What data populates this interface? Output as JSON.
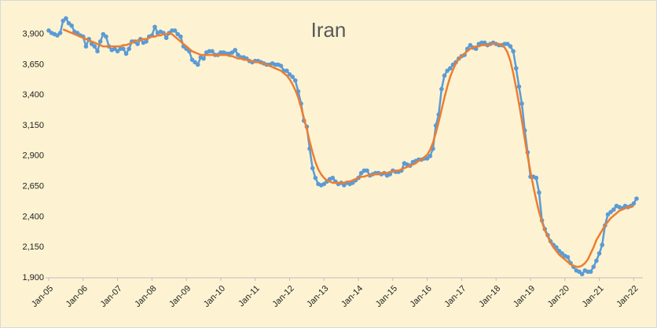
{
  "chart_data": {
    "type": "line",
    "title": "Iran",
    "categories": [
      "Jan-05",
      null,
      null,
      null,
      null,
      null,
      null,
      null,
      null,
      null,
      null,
      null,
      "Jan-06",
      null,
      null,
      null,
      null,
      null,
      null,
      null,
      null,
      null,
      null,
      null,
      "Jan-07",
      null,
      null,
      null,
      null,
      null,
      null,
      null,
      null,
      null,
      null,
      null,
      "Jan-08",
      null,
      null,
      null,
      null,
      null,
      null,
      null,
      null,
      null,
      null,
      null,
      "Jan-09",
      null,
      null,
      null,
      null,
      null,
      null,
      null,
      null,
      null,
      null,
      null,
      "Jan-10",
      null,
      null,
      null,
      null,
      null,
      null,
      null,
      null,
      null,
      null,
      null,
      "Jan-11",
      null,
      null,
      null,
      null,
      null,
      null,
      null,
      null,
      null,
      null,
      null,
      "Jan-12",
      null,
      null,
      null,
      null,
      null,
      null,
      null,
      null,
      null,
      null,
      null,
      "Jan-13",
      null,
      null,
      null,
      null,
      null,
      null,
      null,
      null,
      null,
      null,
      null,
      "Jan-14",
      null,
      null,
      null,
      null,
      null,
      null,
      null,
      null,
      null,
      null,
      null,
      "Jan-15",
      null,
      null,
      null,
      null,
      null,
      null,
      null,
      null,
      null,
      null,
      null,
      "Jan-16",
      null,
      null,
      null,
      null,
      null,
      null,
      null,
      null,
      null,
      null,
      null,
      "Jan-17",
      null,
      null,
      null,
      null,
      null,
      null,
      null,
      null,
      null,
      null,
      null,
      "Jan-18",
      null,
      null,
      null,
      null,
      null,
      null,
      null,
      null,
      null,
      null,
      null,
      "Jan-19",
      null,
      null,
      null,
      null,
      null,
      null,
      null,
      null,
      null,
      null,
      null,
      "Jan-20",
      null,
      null,
      null,
      null,
      null,
      null,
      null,
      null,
      null,
      null,
      null,
      "Jan-21",
      null,
      null,
      null,
      null,
      null,
      null,
      null,
      null,
      null,
      null,
      null,
      "Jan-22",
      null
    ],
    "series": [
      {
        "color": "#5b9bd5",
        "markers": true,
        "values": [
          3930,
          3910,
          3900,
          3890,
          3910,
          4010,
          4030,
          3990,
          3970,
          3920,
          3910,
          3890,
          3880,
          3800,
          3860,
          3820,
          3800,
          3760,
          3840,
          3900,
          3880,
          3800,
          3770,
          3780,
          3760,
          3780,
          3780,
          3740,
          3780,
          3840,
          3840,
          3820,
          3860,
          3830,
          3840,
          3880,
          3890,
          3960,
          3910,
          3920,
          3910,
          3870,
          3910,
          3930,
          3930,
          3900,
          3880,
          3800,
          3780,
          3760,
          3690,
          3670,
          3650,
          3710,
          3700,
          3750,
          3760,
          3760,
          3730,
          3730,
          3750,
          3750,
          3740,
          3740,
          3750,
          3770,
          3730,
          3710,
          3710,
          3700,
          3680,
          3670,
          3680,
          3680,
          3670,
          3660,
          3650,
          3650,
          3660,
          3650,
          3650,
          3640,
          3600,
          3600,
          3570,
          3550,
          3520,
          3430,
          3330,
          3190,
          3140,
          2960,
          2800,
          2720,
          2670,
          2660,
          2670,
          2690,
          2710,
          2720,
          2690,
          2670,
          2680,
          2660,
          2680,
          2670,
          2680,
          2700,
          2720,
          2760,
          2780,
          2780,
          2740,
          2750,
          2760,
          2760,
          2750,
          2760,
          2740,
          2750,
          2780,
          2770,
          2770,
          2780,
          2840,
          2830,
          2820,
          2850,
          2860,
          2870,
          2870,
          2880,
          2880,
          2900,
          2960,
          3150,
          3240,
          3450,
          3560,
          3600,
          3620,
          3650,
          3670,
          3700,
          3720,
          3730,
          3780,
          3810,
          3790,
          3780,
          3820,
          3830,
          3830,
          3810,
          3820,
          3830,
          3820,
          3810,
          3810,
          3820,
          3820,
          3800,
          3760,
          3620,
          3470,
          3330,
          3110,
          2930,
          2730,
          2730,
          2720,
          2600,
          2370,
          2300,
          2250,
          2200,
          2170,
          2150,
          2120,
          2100,
          2080,
          2070,
          2020,
          1990,
          1960,
          1950,
          1930,
          1960,
          1950,
          1950,
          1990,
          2040,
          2100,
          2170,
          2330,
          2420,
          2440,
          2460,
          2490,
          2480,
          2470,
          2490,
          2480,
          2490,
          2510,
          2550
        ]
      },
      {
        "color": "#ed7d31",
        "markers": false,
        "values": [
          null,
          null,
          null,
          null,
          null,
          3940,
          3930,
          3920,
          3910,
          3900,
          3890,
          3880,
          3870,
          3860,
          3850,
          3840,
          3830,
          3820,
          3810,
          3800,
          3800,
          3800,
          3800,
          3800,
          3800,
          3800,
          3810,
          3810,
          3820,
          3830,
          3840,
          3850,
          3850,
          3860,
          3860,
          3870,
          3880,
          3880,
          3890,
          3890,
          3900,
          3900,
          3910,
          3900,
          3880,
          3860,
          3840,
          3820,
          3800,
          3780,
          3760,
          3750,
          3740,
          3730,
          3730,
          3730,
          3730,
          3730,
          3730,
          3730,
          3730,
          3730,
          3730,
          3720,
          3720,
          3710,
          3700,
          3700,
          3690,
          3690,
          3680,
          3680,
          3670,
          3670,
          3660,
          3660,
          3650,
          3640,
          3630,
          3620,
          3610,
          3600,
          3580,
          3560,
          3530,
          3490,
          3440,
          3380,
          3300,
          3210,
          3120,
          3020,
          2930,
          2850,
          2790,
          2750,
          2720,
          2700,
          2690,
          2680,
          2680,
          2680,
          2680,
          2680,
          2690,
          2690,
          2700,
          2710,
          2720,
          2730,
          2730,
          2740,
          2740,
          2750,
          2750,
          2750,
          2760,
          2760,
          2760,
          2770,
          2770,
          2780,
          2780,
          2790,
          2800,
          2810,
          2820,
          2830,
          2840,
          2860,
          2870,
          2890,
          2910,
          2950,
          3010,
          3090,
          3180,
          3280,
          3380,
          3470,
          3550,
          3610,
          3660,
          3700,
          3720,
          3740,
          3760,
          3780,
          3790,
          3800,
          3800,
          3810,
          3810,
          3810,
          3820,
          3820,
          3820,
          3820,
          3810,
          3790,
          3750,
          3680,
          3580,
          3460,
          3330,
          3190,
          3040,
          2900,
          2770,
          2650,
          2540,
          2440,
          2360,
          2290,
          2240,
          2190,
          2150,
          2120,
          2090,
          2070,
          2050,
          2030,
          2010,
          2000,
          1990,
          1990,
          2000,
          2020,
          2050,
          2100,
          2150,
          2210,
          2250,
          2290,
          2330,
          2360,
          2390,
          2410,
          2430,
          2450,
          2460,
          2470,
          2480,
          2480,
          2490,
          null
        ]
      }
    ],
    "ylim": [
      1900,
      4050
    ],
    "yticks": [
      {
        "value": 1900,
        "label": "1,900"
      },
      {
        "value": 2150,
        "label": "2,150"
      },
      {
        "value": 2400,
        "label": "2,400"
      },
      {
        "value": 2650,
        "label": "2,650"
      },
      {
        "value": 2900,
        "label": "2,900"
      },
      {
        "value": 3150,
        "label": "3,150"
      },
      {
        "value": 3400,
        "label": "3,400"
      },
      {
        "value": 3650,
        "label": "3,650"
      },
      {
        "value": 3900,
        "label": "3,900"
      }
    ],
    "grid": false
  }
}
